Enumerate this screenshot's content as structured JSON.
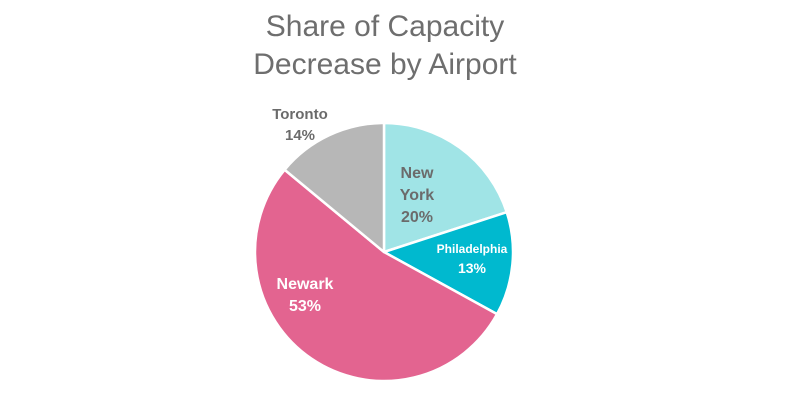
{
  "chart_data": {
    "type": "pie",
    "title_lines": [
      "Share of Capacity",
      "Decrease by Airport"
    ],
    "slices": [
      {
        "label": "New York",
        "label_lines": [
          "New",
          "York"
        ],
        "percent_label": "20%",
        "value": 20,
        "color": "#a0e4e6",
        "text_color": "#6b6b6b"
      },
      {
        "label": "Philadelphia",
        "label_lines": [
          "Philadelphia"
        ],
        "percent_label": "13%",
        "value": 13,
        "color": "#00b9cf",
        "text_color": "#ffffff"
      },
      {
        "label": "Newark",
        "label_lines": [
          "Newark"
        ],
        "percent_label": "53%",
        "value": 53,
        "color": "#e36490",
        "text_color": "#ffffff"
      },
      {
        "label": "Toronto",
        "label_lines": [
          "Toronto"
        ],
        "percent_label": "14%",
        "value": 14,
        "color": "#b7b7b7",
        "text_color": "#6b6b6b"
      }
    ],
    "legend": "none"
  }
}
